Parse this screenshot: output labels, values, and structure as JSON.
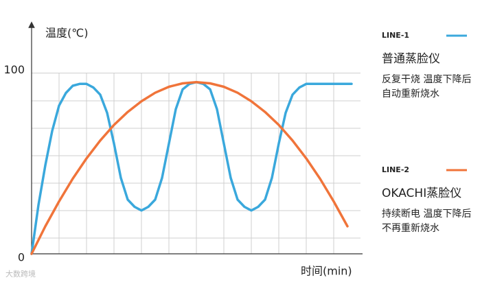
{
  "chart_data": {
    "type": "line",
    "y_label": "温度(℃)",
    "x_label": "时间(min)",
    "watermark": "大数跨境",
    "xlim": [
      0,
      12.1
    ],
    "ylim": [
      0,
      126
    ],
    "yticks": [
      0,
      100
    ],
    "grid": true,
    "series": [
      {
        "name": "LINE-1",
        "label": "普通蒸脸仪",
        "description": [
          "反复干烧 温度下降后",
          "自动重新烧水"
        ],
        "color": "#3aa8dc",
        "x": [
          0,
          0.25,
          0.5,
          0.75,
          1,
          1.25,
          1.5,
          1.75,
          2,
          2.25,
          2.5,
          2.75,
          3,
          3.25,
          3.5,
          3.75,
          4,
          4.25,
          4.5,
          4.75,
          5,
          5.25,
          5.5,
          5.75,
          6,
          6.25,
          6.5,
          6.75,
          7,
          7.25,
          7.5,
          7.75,
          8,
          8.25,
          8.5,
          8.75,
          9,
          9.25,
          9.5,
          9.75,
          10,
          10.5,
          11.65
        ],
        "values": [
          0,
          27,
          49,
          68,
          82,
          89,
          93,
          94,
          94,
          92,
          88,
          78,
          61,
          42,
          30,
          26,
          24,
          26,
          30,
          42,
          61,
          80,
          91,
          94,
          95,
          94,
          91,
          80,
          61,
          42,
          30,
          26,
          24,
          26,
          30,
          42,
          61,
          78,
          88,
          92,
          94,
          94,
          94
        ]
      },
      {
        "name": "LINE-2",
        "label": "OKACHI蒸脸仪",
        "description": [
          "持续断电 温度下降后",
          "不再重新烧水"
        ],
        "color": "#f0743a",
        "x": [
          0,
          0.5,
          1,
          1.5,
          2,
          2.5,
          3,
          3.5,
          4,
          4.5,
          5,
          5.5,
          6,
          6.5,
          7,
          7.5,
          8,
          8.5,
          9,
          9.5,
          10,
          10.5,
          11,
          11.5
        ],
        "values": [
          0,
          15.2,
          29,
          41.6,
          52.8,
          62.7,
          71.3,
          78.5,
          84.4,
          89.1,
          92.4,
          94.3,
          95,
          94.3,
          92.4,
          89.1,
          84.4,
          78.5,
          71.3,
          62.7,
          52.8,
          41.6,
          29,
          15.2
        ]
      }
    ]
  }
}
